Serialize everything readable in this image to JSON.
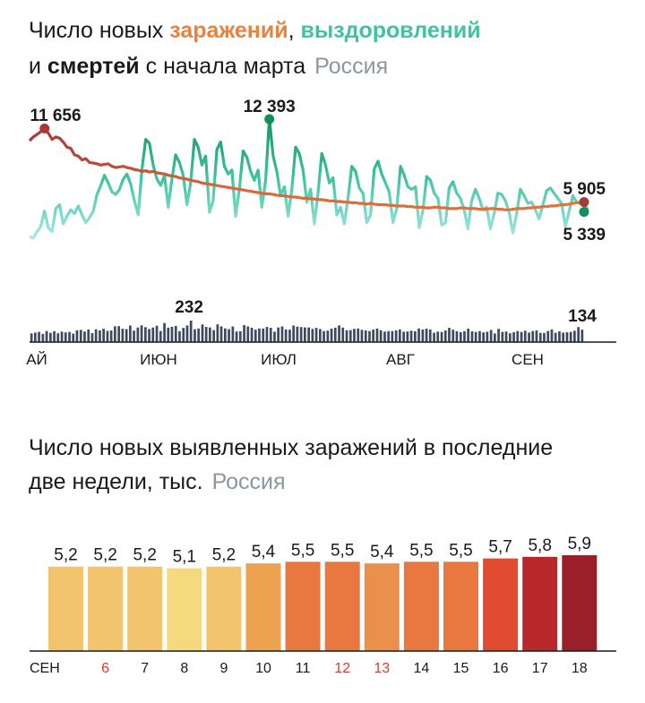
{
  "title1": {
    "line1_prefix": "Число новых ",
    "infections_word": "заражений",
    "comma": ",",
    "recoveries_word": "выздоровлений",
    "line2_prefix": "и ",
    "deaths_word": "смертей",
    "line2_suffix": " с начала марта",
    "region": "Россия"
  },
  "title2": {
    "line1": "Число новых выявленных заражений в последние",
    "line2": "две недели, тыс.",
    "region": "Россия"
  },
  "colors": {
    "infections": "#e0763c",
    "infections_early": "#a63a3a",
    "recoveries": "#3fc3a0",
    "deaths_bars": "#3f4a5c",
    "axis": "#1a1a1a",
    "weekend_label": "#d63c2f"
  },
  "chart_data": [
    {
      "type": "line",
      "title": "Число новых заражений, выздоровлений и смертей с начала марта",
      "x_tick_labels": [
        "АЙ",
        "ИЮН",
        "ИЮЛ",
        "АВГ",
        "СЕН"
      ],
      "annotations": {
        "infections_peak": "11 656",
        "recoveries_peak": "12 393",
        "infections_last": "5 905",
        "recoveries_last": "5 339",
        "deaths_peak": "232",
        "deaths_last": "134"
      },
      "ylim_cases": [
        0,
        14000
      ],
      "series": [
        {
          "key": "infections",
          "values": [
            10700,
            11000,
            11200,
            11400,
            11656,
            11300,
            10800,
            11000,
            10900,
            10600,
            10200,
            10100,
            9600,
            9500,
            9200,
            9300,
            9000,
            8950,
            8900,
            8800,
            8850,
            8900,
            8700,
            8600,
            8650,
            8700,
            8600,
            8550,
            8450,
            8400,
            8300,
            8350,
            8250,
            8300,
            8200,
            8150,
            8100,
            8000,
            7950,
            7900,
            7800,
            7750,
            7700,
            7600,
            7550,
            7500,
            7400,
            7350,
            7300,
            7250,
            7200,
            7150,
            7100,
            7050,
            7000,
            6950,
            6900,
            6850,
            6800,
            6750,
            6700,
            6650,
            6600,
            6550,
            6550,
            6500,
            6450,
            6400,
            6400,
            6350,
            6300,
            6300,
            6250,
            6200,
            6200,
            6150,
            6150,
            6100,
            6100,
            6050,
            6000,
            6000,
            5950,
            5950,
            5900,
            5900,
            5850,
            5850,
            5800,
            5800,
            5750,
            5800,
            5750,
            5700,
            5700,
            5700,
            5650,
            5650,
            5600,
            5600,
            5600,
            5550,
            5550,
            5500,
            5500,
            5500,
            5450,
            5450,
            5500,
            5500,
            5450,
            5450,
            5400,
            5400,
            5400,
            5450,
            5450,
            5400,
            5400,
            5400,
            5350,
            5350,
            5350,
            5400,
            5400,
            5350,
            5350,
            5300,
            5300,
            5350,
            5400,
            5400,
            5400,
            5450,
            5450,
            5500,
            5500,
            5550,
            5550,
            5600,
            5600,
            5650,
            5700,
            5700,
            5750,
            5800,
            5850,
            5900,
            5905
          ]
        },
        {
          "key": "recoveries",
          "values": [
            3200,
            3100,
            3600,
            4000,
            5200,
            3900,
            3600,
            5400,
            5700,
            4200,
            4800,
            5300,
            5000,
            5600,
            4900,
            4300,
            4700,
            5200,
            6500,
            7200,
            8000,
            7400,
            6700,
            6500,
            6900,
            7700,
            8100,
            7300,
            6000,
            4900,
            8500,
            10800,
            10500,
            8800,
            7700,
            7200,
            8000,
            5500,
            7700,
            9600,
            9000,
            8000,
            5700,
            7400,
            10800,
            10200,
            8800,
            9500,
            5100,
            6000,
            10000,
            10600,
            8700,
            8100,
            8400,
            4800,
            6900,
            9900,
            9400,
            8300,
            7600,
            8400,
            5500,
            7600,
            12393,
            9500,
            8300,
            6400,
            7100,
            4800,
            6900,
            10200,
            9700,
            8400,
            5900,
            6900,
            4200,
            6600,
            9700,
            8800,
            7400,
            7800,
            4900,
            5500,
            4200,
            6200,
            8700,
            8300,
            7000,
            6600,
            4300,
            4900,
            8500,
            9100,
            8100,
            7400,
            6700,
            4300,
            5400,
            8700,
            8000,
            7100,
            6900,
            7100,
            3900,
            5300,
            7900,
            7600,
            6600,
            6200,
            4100,
            4300,
            7000,
            7500,
            6600,
            6200,
            5300,
            3800,
            6000,
            6900,
            6200,
            5300,
            5500,
            3800,
            5000,
            6600,
            6500,
            6000,
            5100,
            3500,
            5000,
            6900,
            6400,
            5800,
            5900,
            5300,
            4600,
            5700,
            6800,
            7000,
            6600,
            6200,
            5800,
            4000,
            5200,
            6400,
            5900,
            5800,
            5700,
            5339
          ]
        },
        {
          "key": "deaths",
          "values": [
            94,
            102,
            110,
            88,
            120,
            100,
            118,
            96,
            113,
            104,
            109,
            92,
            128,
            131,
            114,
            135,
            98,
            138,
            126,
            144,
            121,
            126,
            170,
            172,
            144,
            140,
            179,
            124,
            158,
            181,
            161,
            141,
            158,
            177,
            120,
            206,
            156,
            165,
            174,
            118,
            153,
            180,
            232,
            139,
            147,
            190,
            164,
            158,
            130,
            192,
            170,
            148,
            140,
            168,
            114,
            117,
            184,
            169,
            155,
            134,
            147,
            147,
            163,
            154,
            112,
            158,
            169,
            136,
            134,
            179,
            167,
            162,
            159,
            159,
            142,
            154,
            141,
            119,
            124,
            145,
            156,
            181,
            157,
            128,
            130,
            143,
            147,
            132,
            126,
            119,
            135,
            146,
            129,
            113,
            118,
            119,
            127,
            135,
            112,
            115,
            123,
            117,
            147,
            135,
            145,
            136,
            101,
            113,
            109,
            126,
            154,
            133,
            118,
            107,
            118,
            145,
            116,
            109,
            119,
            104,
            111,
            131,
            93,
            143,
            110,
            114,
            95,
            106,
            120,
            109,
            123,
            102,
            119,
            126,
            100,
            99,
            120,
            137,
            101,
            117,
            102,
            106,
            110,
            123,
            162,
            134
          ]
        }
      ]
    },
    {
      "type": "bar",
      "title": "Число новых выявленных заражений в последние две недели, тыс.",
      "categories": [
        "СЕН",
        "6",
        "7",
        "8",
        "9",
        "10",
        "11",
        "12",
        "13",
        "14",
        "15",
        "16",
        "17",
        "18"
      ],
      "weekend_categories": [
        "6",
        "12",
        "13"
      ],
      "values_text": [
        "5,2",
        "5,2",
        "5,2",
        "5,1",
        "5,2",
        "5,4",
        "5,5",
        "5,5",
        "5,4",
        "5,5",
        "5,5",
        "5,7",
        "5,8",
        "5,9"
      ],
      "values": [
        5.2,
        5.2,
        5.2,
        5.1,
        5.2,
        5.4,
        5.5,
        5.5,
        5.4,
        5.5,
        5.5,
        5.7,
        5.8,
        5.9
      ],
      "bar_colors": [
        "#f2c46e",
        "#f2c46e",
        "#f2c46e",
        "#f5d97e",
        "#f2c46e",
        "#eca24e",
        "#e8783f",
        "#e8783f",
        "#eb8f4c",
        "#e8783f",
        "#e8783f",
        "#e04a30",
        "#b8282a",
        "#9a1f2a"
      ],
      "ylim": [
        0,
        6.4
      ]
    }
  ]
}
